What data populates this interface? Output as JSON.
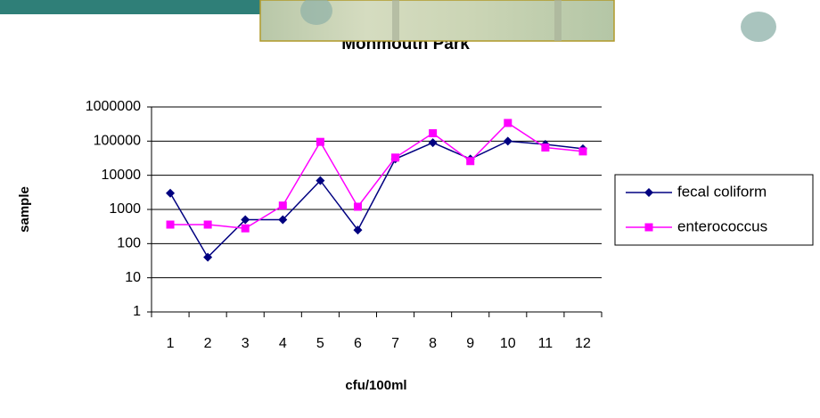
{
  "chart_data": {
    "type": "line",
    "title": "Monmouth Park",
    "x_label": "cfu/100ml",
    "y_label": "sample",
    "categories": [
      "1",
      "2",
      "3",
      "4",
      "5",
      "6",
      "7",
      "8",
      "9",
      "10",
      "11",
      "12"
    ],
    "series": [
      {
        "name": "fecal coliform",
        "color": "#000080",
        "marker": "diamond",
        "values": [
          3000,
          40,
          500,
          500,
          7000,
          250,
          30000,
          90000,
          30000,
          100000,
          80000,
          60000
        ]
      },
      {
        "name": "enterococcus",
        "color": "#ff00ff",
        "marker": "square",
        "values": [
          360,
          360,
          280,
          1300,
          95000,
          1200,
          33000,
          170000,
          26000,
          340000,
          65000,
          50000
        ]
      }
    ],
    "yscale": "log",
    "ylim": [
      1,
      1000000
    ],
    "yticks": [
      1,
      10,
      100,
      1000,
      10000,
      100000,
      1000000
    ],
    "grid": true,
    "legend": "right"
  }
}
